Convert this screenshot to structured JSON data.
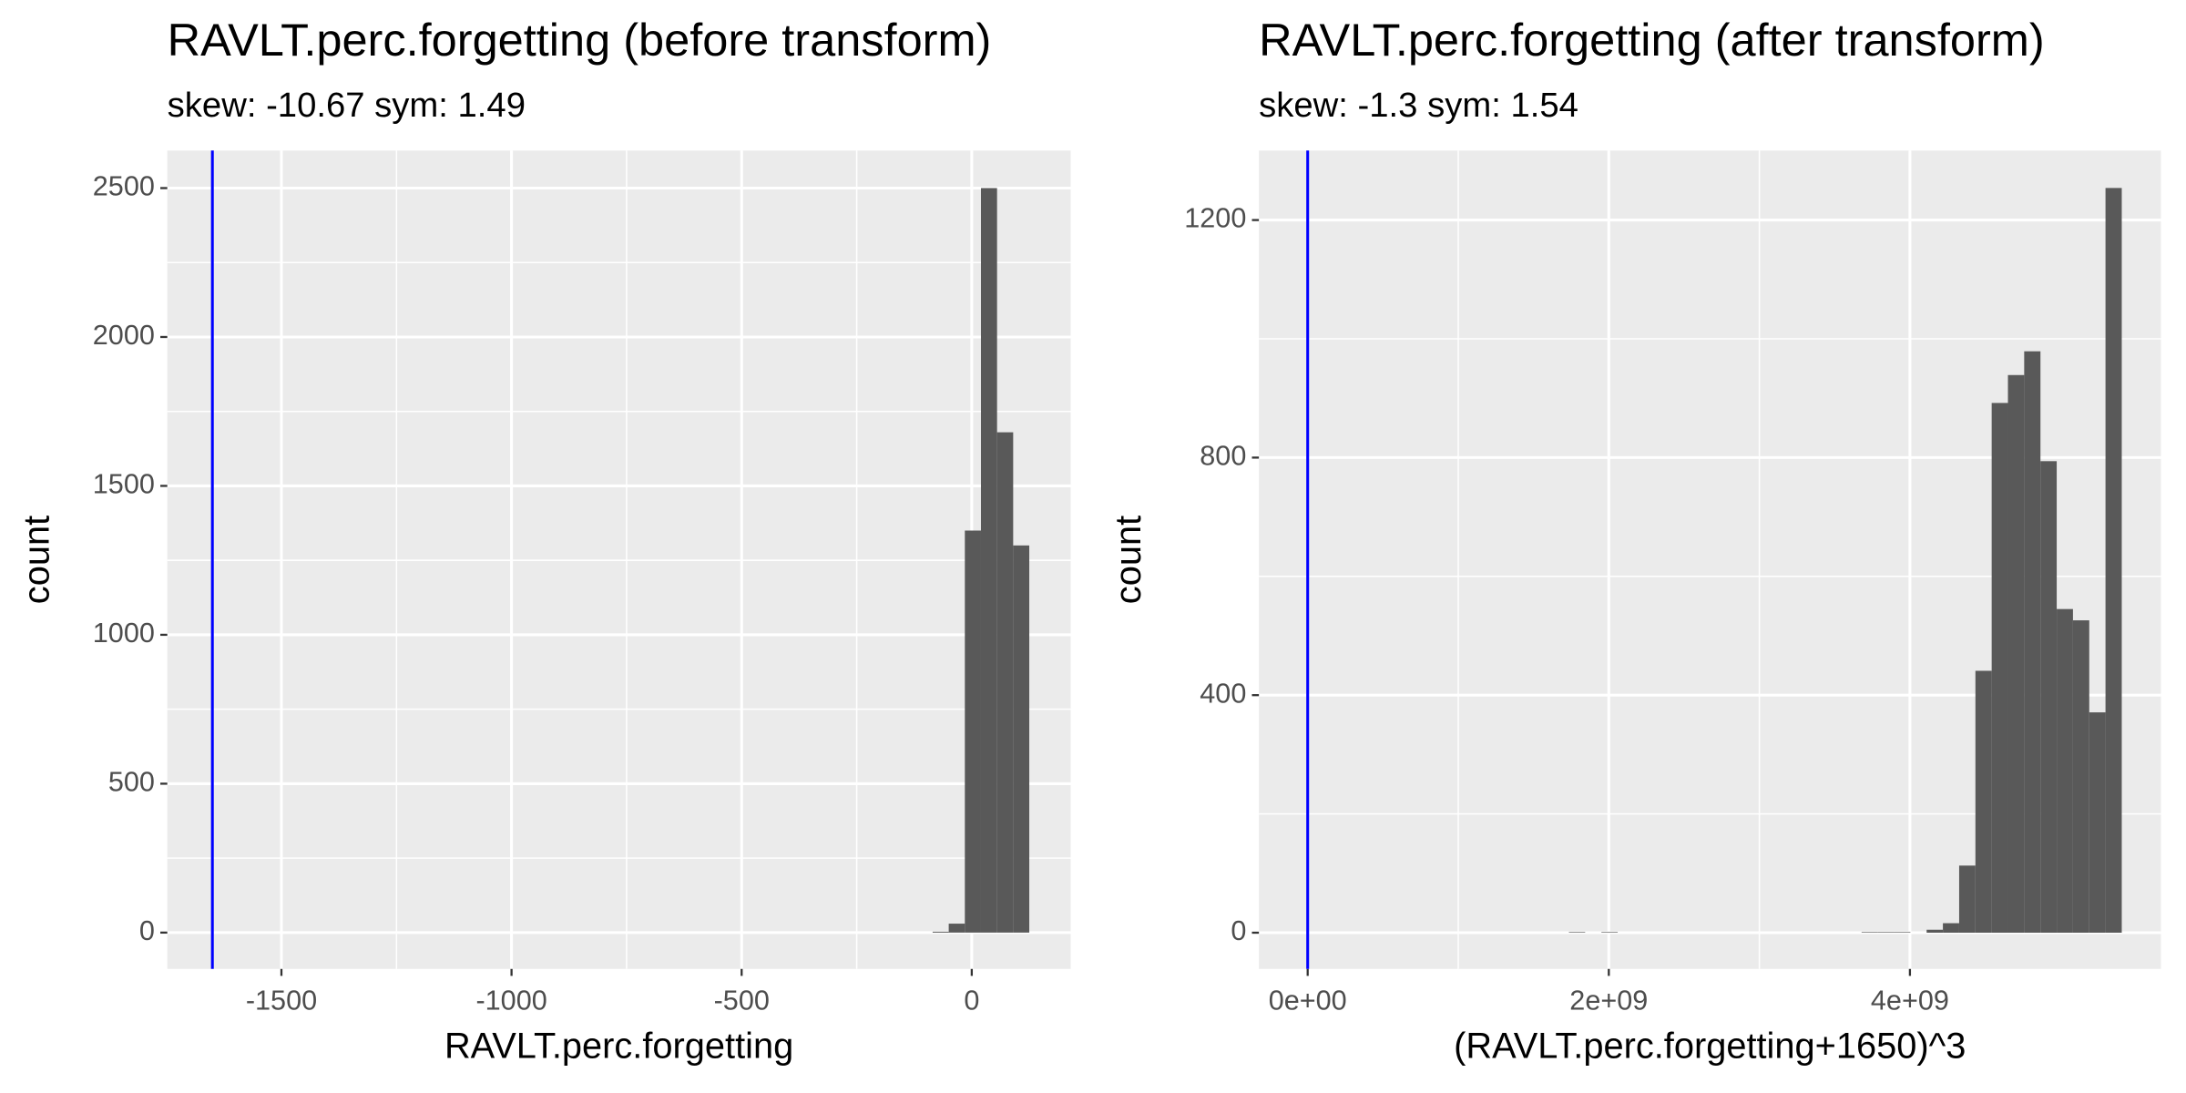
{
  "chart_data": [
    {
      "type": "histogram",
      "title": "RAVLT.perc.forgetting (before transform)",
      "subtitle": "skew: -10.67 sym: 1.49",
      "xlabel": "RAVLT.perc.forgetting",
      "ylabel": "count",
      "bins": [
        -85,
        -50,
        -15,
        20,
        55,
        90,
        125
      ],
      "values": [
        3,
        30,
        1350,
        2500,
        1680,
        1300
      ],
      "color": "#595959",
      "vline": -1650,
      "vline_color": "#0000ff",
      "xlim": [
        -1748,
        215
      ],
      "ylim": [
        -122,
        2626
      ],
      "xticks": [
        -1500,
        -1000,
        -500,
        0
      ],
      "yticks": [
        0,
        500,
        1000,
        1500,
        2000,
        2500
      ],
      "grid": true
    },
    {
      "type": "histogram",
      "title": "RAVLT.perc.forgetting (after transform)",
      "subtitle": "skew: -1.3 sym: 1.54",
      "xlabel": "(RAVLT.perc.forgetting+1650)^3",
      "ylabel": "count",
      "bins": [
        1735000000,
        1843000000,
        1951000000,
        2059000000,
        2167000000,
        2275000000,
        2383000000,
        2491000000,
        2599000000,
        2707000000,
        2815000000,
        2923000000,
        3031000000,
        3139000000,
        3247000000,
        3355000000,
        3463000000,
        3571000000,
        3679000000,
        3787000000,
        3895000000,
        4003000000,
        4111000000,
        4219000000,
        4327000000,
        4435000000,
        4543000000,
        4651000000,
        4759000000,
        4867000000,
        4975000000,
        5083000000,
        5191000000,
        5299000000,
        5407000000
      ],
      "values": [
        1,
        0,
        1,
        0,
        0,
        0,
        0,
        0,
        0,
        0,
        0,
        0,
        0,
        0,
        0,
        0,
        0,
        0,
        1,
        1,
        1,
        0,
        5,
        16,
        113,
        441,
        892,
        939,
        979,
        794,
        545,
        526,
        371,
        1254
      ],
      "color": "#595959",
      "vline": 0,
      "vline_color": "#0000ff",
      "xlim": [
        -324000000,
        5667000000
      ],
      "ylim": [
        -61,
        1317
      ],
      "xticks": [
        {
          "value": 0,
          "label": "0e+00"
        },
        {
          "value": 2000000000,
          "label": "2e+09"
        },
        {
          "value": 4000000000,
          "label": "4e+09"
        }
      ],
      "yticks": [
        0,
        400,
        800,
        1200
      ],
      "grid": true
    }
  ]
}
